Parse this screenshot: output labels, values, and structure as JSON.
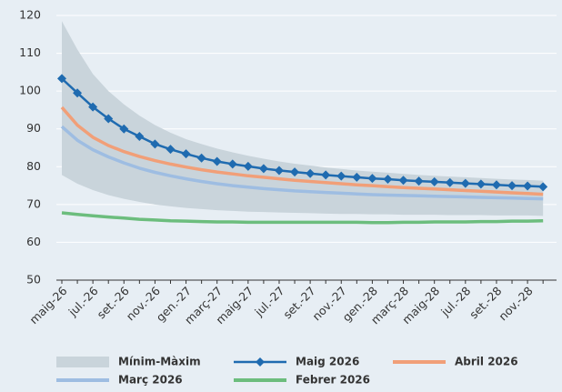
{
  "chart_data": {
    "type": "line",
    "categories": [
      "maig-26",
      null,
      "jul.-26",
      null,
      "set.-26",
      null,
      "nov.-26",
      null,
      "gen.-27",
      null,
      "març-27",
      null,
      "maig-27",
      null,
      "jul.-27",
      null,
      "set.-27",
      null,
      "nov.-27",
      null,
      "gen.-28",
      null,
      "març-28",
      null,
      "maig-28",
      null,
      "jul.-28",
      null,
      "set.-28",
      null,
      "nov.-28",
      null
    ],
    "ylim": [
      50,
      120
    ],
    "yticks": [
      50,
      60,
      70,
      80,
      90,
      100,
      110,
      120
    ],
    "grid": true,
    "series": [
      {
        "name": "Mínim-Màxim",
        "color": "#c9d4db",
        "high": [
          118.5,
          111,
          104.5,
          100,
          96.5,
          93.5,
          91,
          89,
          87.3,
          86,
          84.8,
          83.8,
          82.9,
          82.1,
          81.4,
          80.8,
          80.3,
          79.8,
          79.4,
          79.0,
          78.7,
          78.4,
          78.1,
          77.8,
          77.6,
          77.4,
          77.2,
          77.0,
          76.8,
          76.6,
          76.5,
          76.3
        ],
        "low": [
          77.8,
          75.5,
          73.8,
          72.5,
          71.5,
          70.7,
          70.0,
          69.5,
          69.1,
          68.8,
          68.5,
          68.3,
          68.1,
          68.0,
          67.9,
          67.8,
          67.7,
          67.6,
          67.5,
          67.5,
          67.4,
          67.4,
          67.3,
          67.3,
          67.3,
          67.2,
          67.2,
          67.2,
          67.1,
          67.1,
          67.1,
          67.0
        ]
      },
      {
        "name": "Maig 2026",
        "color": "#1f6bb0",
        "marker": "diamond",
        "values": [
          103.3,
          99.5,
          95.8,
          92.7,
          90.0,
          88.0,
          86.0,
          84.6,
          83.4,
          82.3,
          81.4,
          80.7,
          80.1,
          79.5,
          79.0,
          78.6,
          78.2,
          77.8,
          77.5,
          77.2,
          76.9,
          76.7,
          76.4,
          76.2,
          76.0,
          75.8,
          75.6,
          75.4,
          75.2,
          75.0,
          74.9,
          74.7
        ]
      },
      {
        "name": "Abril 2026",
        "color": "#f19f78",
        "values": [
          95.7,
          91.0,
          87.8,
          85.6,
          84.0,
          82.7,
          81.6,
          80.7,
          79.9,
          79.2,
          78.6,
          78.1,
          77.6,
          77.2,
          76.8,
          76.4,
          76.1,
          75.8,
          75.5,
          75.2,
          75.0,
          74.7,
          74.5,
          74.3,
          74.1,
          73.9,
          73.7,
          73.5,
          73.3,
          73.1,
          72.9,
          72.7
        ]
      },
      {
        "name": "Març 2026",
        "color": "#9ebde2",
        "values": [
          90.6,
          87.0,
          84.5,
          82.6,
          81.0,
          79.6,
          78.5,
          77.6,
          76.8,
          76.1,
          75.5,
          75.0,
          74.6,
          74.2,
          73.9,
          73.6,
          73.4,
          73.2,
          73.0,
          72.8,
          72.6,
          72.5,
          72.4,
          72.3,
          72.2,
          72.1,
          72.0,
          71.9,
          71.8,
          71.7,
          71.6,
          71.5
        ]
      },
      {
        "name": "Febrer 2026",
        "color": "#6cbd7d",
        "values": [
          67.8,
          67.4,
          67.0,
          66.7,
          66.4,
          66.1,
          65.9,
          65.7,
          65.6,
          65.5,
          65.4,
          65.4,
          65.3,
          65.3,
          65.3,
          65.3,
          65.3,
          65.3,
          65.3,
          65.3,
          65.2,
          65.2,
          65.3,
          65.3,
          65.4,
          65.4,
          65.4,
          65.5,
          65.5,
          65.6,
          65.6,
          65.7
        ]
      }
    ]
  }
}
